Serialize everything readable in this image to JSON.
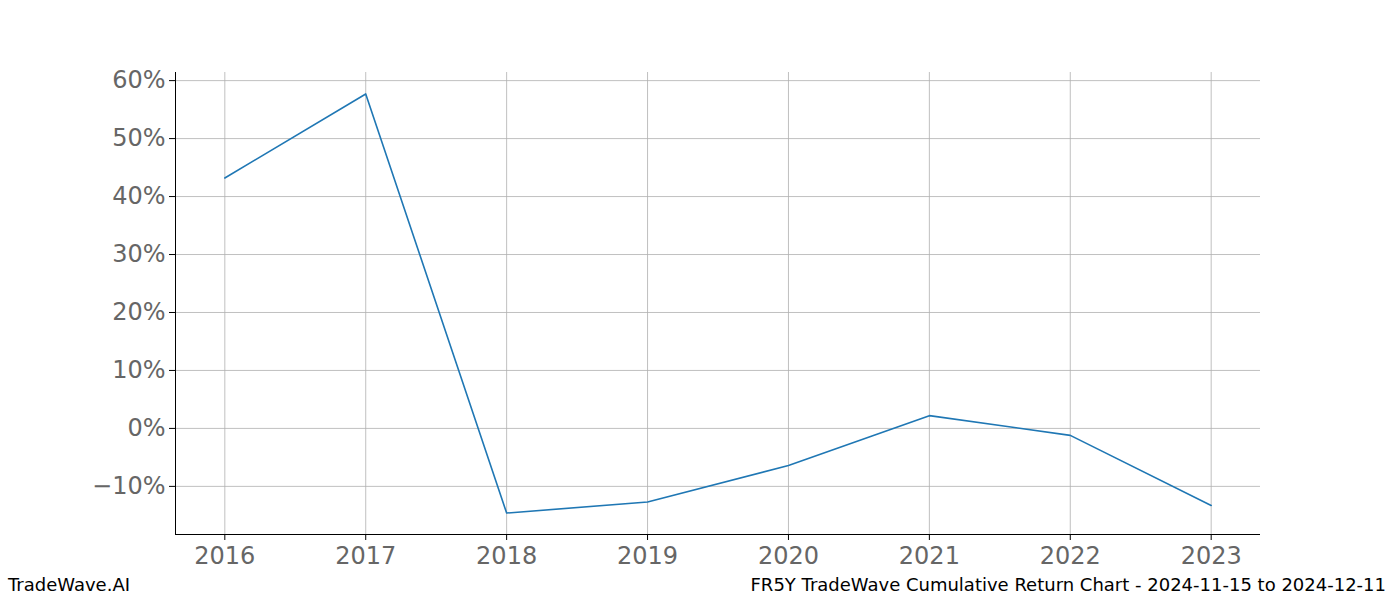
{
  "chart_data": {
    "type": "line",
    "title": "FR5Y TradeWave Cumulative Return Chart - 2024-11-15 to 2024-12-11",
    "annotations": [
      "TradeWave.AI"
    ],
    "x": [
      2016,
      2017,
      2018,
      2019,
      2020,
      2021,
      2022,
      2023
    ],
    "values": [
      43.2,
      57.7,
      -14.6,
      -12.7,
      -6.4,
      2.2,
      -1.2,
      -13.3
    ],
    "color": "#1f77b4",
    "xlim": [
      2015.65,
      2023.35
    ],
    "xticks": [
      2016,
      2017,
      2018,
      2019,
      2020,
      2021,
      2022,
      2023
    ],
    "ylim": [
      -18.3,
      61.4
    ],
    "yticks": [
      {
        "value": -10,
        "label": "−10%"
      },
      {
        "value": 0,
        "label": "0%"
      },
      {
        "value": 10,
        "label": "10%"
      },
      {
        "value": 20,
        "label": "20%"
      },
      {
        "value": 30,
        "label": "30%"
      },
      {
        "value": 40,
        "label": "40%"
      },
      {
        "value": 50,
        "label": "50%"
      },
      {
        "value": 60,
        "label": "60%"
      }
    ],
    "grid": true
  }
}
